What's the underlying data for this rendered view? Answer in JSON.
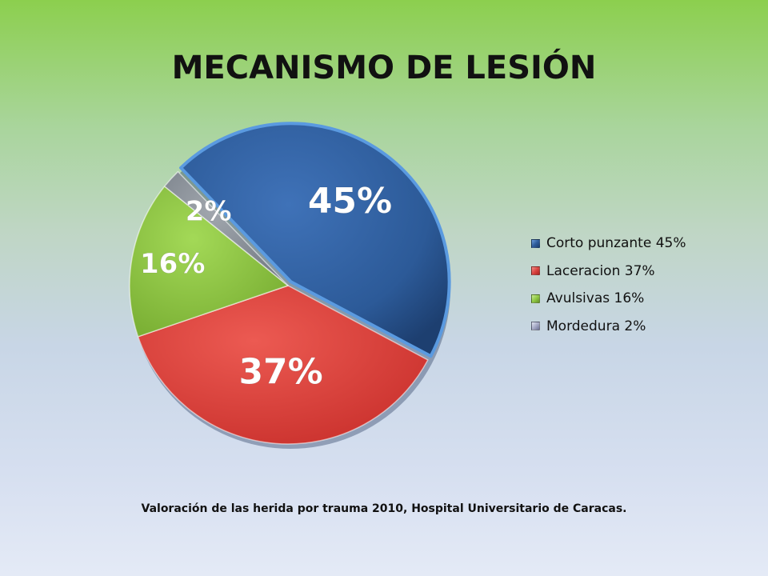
{
  "header": {
    "title": "MECANISMO DE LESIÓN"
  },
  "caption": "Valoración de las herida por trauma 2010, Hospital Universitario de Caracas.",
  "chart_data": {
    "type": "pie",
    "title": "MECANISMO DE LESIÓN",
    "slices": [
      {
        "name": "Corto punzante 45%",
        "value": 45,
        "label": "45%",
        "color": "#2f5e9e"
      },
      {
        "name": "Laceracion 37%",
        "value": 37,
        "label": "37%",
        "color": "#d8403c"
      },
      {
        "name": "Avulsivas 16%",
        "value": 16,
        "label": "16%",
        "color": "#8dc63f"
      },
      {
        "name": "Mordedura 2%",
        "value": 2,
        "label": "2%",
        "color": "#8c939c"
      }
    ],
    "legend_position": "right"
  }
}
